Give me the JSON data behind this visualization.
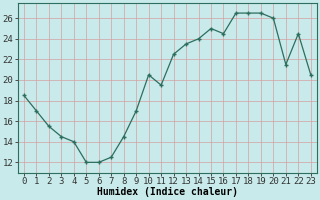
{
  "x": [
    0,
    1,
    2,
    3,
    4,
    5,
    6,
    7,
    8,
    9,
    10,
    11,
    12,
    13,
    14,
    15,
    16,
    17,
    18,
    19,
    20,
    21,
    22,
    23
  ],
  "y": [
    18.5,
    17,
    15.5,
    14.5,
    14,
    12,
    12,
    12.5,
    14.5,
    17,
    20.5,
    19.5,
    22.5,
    23.5,
    24,
    25,
    24.5,
    26.5,
    26.5,
    26.5,
    26,
    21.5,
    24.5,
    20.5
  ],
  "line_color": "#2d6e5e",
  "marker": "+",
  "bg_color": "#c8eaea",
  "grid_color": "#e8b8b8",
  "xlabel": "Humidex (Indice chaleur)",
  "ylabel_ticks": [
    12,
    14,
    16,
    18,
    20,
    22,
    24,
    26
  ],
  "ylim": [
    11.0,
    27.5
  ],
  "xlim": [
    -0.5,
    23.5
  ],
  "label_fontsize": 7,
  "tick_fontsize": 6.5
}
